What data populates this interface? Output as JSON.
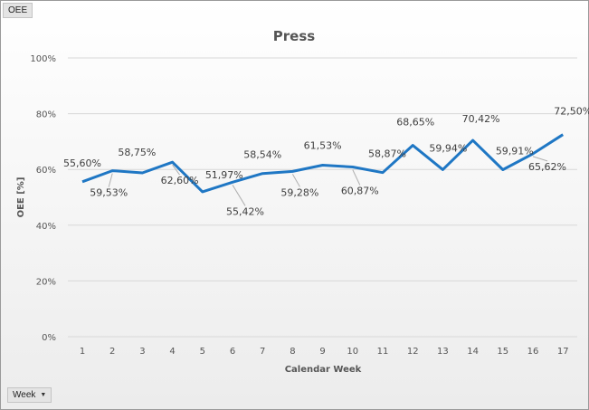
{
  "header_tag": "OEE",
  "footer_filter": {
    "label": "Week",
    "icon": "dropdown-caret-icon"
  },
  "chart_data": {
    "type": "line",
    "title": "Press",
    "xlabel": "Calendar Week",
    "ylabel": "OEE [%]",
    "ylim": [
      0,
      100
    ],
    "yticks": [
      "0%",
      "20%",
      "40%",
      "60%",
      "80%",
      "100%"
    ],
    "categories": [
      "1",
      "2",
      "3",
      "4",
      "5",
      "6",
      "7",
      "8",
      "9",
      "10",
      "11",
      "12",
      "13",
      "14",
      "15",
      "16",
      "17"
    ],
    "values": [
      55.6,
      59.53,
      58.75,
      62.6,
      51.97,
      55.42,
      58.54,
      59.28,
      61.53,
      60.87,
      58.87,
      68.65,
      59.94,
      70.42,
      59.91,
      65.62,
      72.5
    ],
    "labels": [
      "55,60%",
      "59,53%",
      "58,75%",
      "62,60%",
      "51,97%",
      "55,42%",
      "58,54%",
      "59,28%",
      "61,53%",
      "60,87%",
      "58,87%",
      "68,65%",
      "59,94%",
      "70,42%",
      "59,91%",
      "65,62%",
      "72,50%"
    ],
    "grid": true,
    "legend": "none",
    "line_color": "#1f77c4"
  }
}
